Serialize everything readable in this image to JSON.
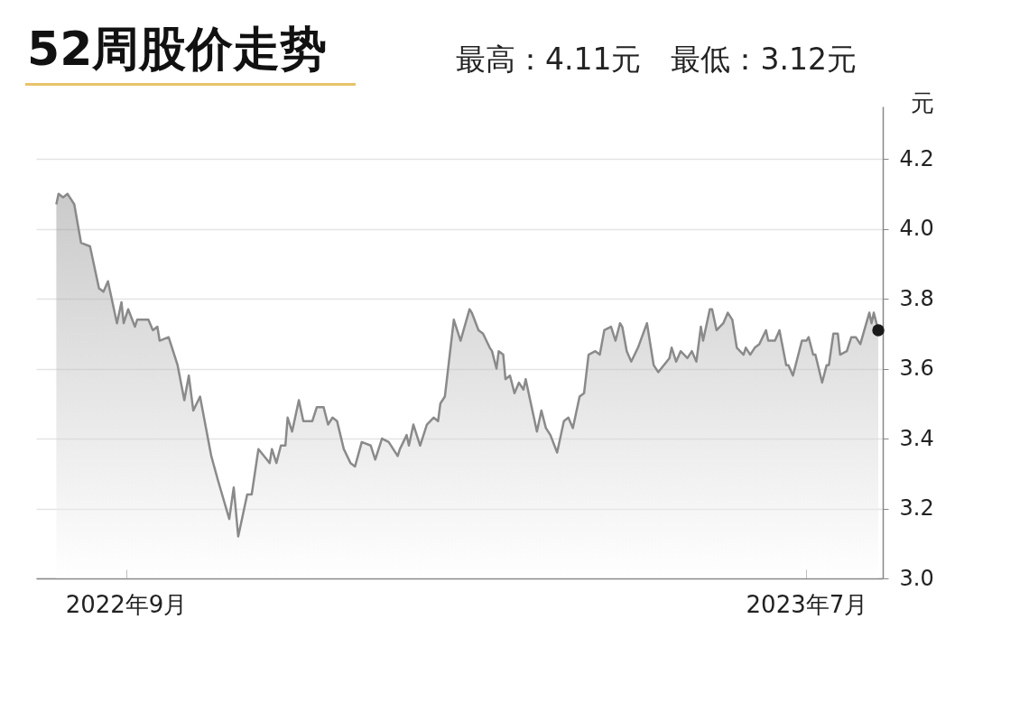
{
  "chart_data": {
    "type": "area",
    "title": "52周股价走势",
    "subtitle": "最高：4.11元　最低：3.12元",
    "ylabel": "元",
    "xlim": [
      "2022-07-23",
      "2023-08-04"
    ],
    "xticks": [
      {
        "value": "2022-09",
        "label": "2022年9月"
      },
      {
        "value": "2023-07",
        "label": "2023年7月"
      }
    ],
    "ylim": [
      3.0,
      4.35
    ],
    "yticks": [
      {
        "value": 3,
        "label": "3.0"
      },
      3.2,
      3.4,
      3.6,
      3.8,
      {
        "value": 4,
        "label": "4.0"
      },
      4.2
    ],
    "grid": "y",
    "series": [
      {
        "type": "area",
        "color": "#8a8a8a",
        "x": [
          "2022-08-01",
          "2022-08-02",
          "2022-08-04",
          "2022-08-06",
          "2022-08-09",
          "2022-08-12",
          "2022-08-16",
          "2022-08-20",
          "2022-08-22",
          "2022-08-24",
          "2022-08-28",
          "2022-08-30",
          "2022-08-31",
          "2022-09-02",
          "2022-09-05",
          "2022-09-06",
          "2022-09-11",
          "2022-09-13",
          "2022-09-15",
          "2022-09-16",
          "2022-09-20",
          "2022-09-24",
          "2022-09-27",
          "2022-09-29",
          "2022-10-01",
          "2022-10-04",
          "2022-10-09",
          "2022-10-12",
          "2022-10-17",
          "2022-10-19",
          "2022-10-21",
          "2022-10-25",
          "2022-10-27",
          "2022-10-30",
          "2022-11-04",
          "2022-11-05",
          "2022-11-07",
          "2022-11-09",
          "2022-11-11",
          "2022-11-12",
          "2022-11-14",
          "2022-11-17",
          "2022-11-19",
          "2022-11-23",
          "2022-11-25",
          "2022-11-28",
          "2022-11-30",
          "2022-12-02",
          "2022-12-04",
          "2022-12-07",
          "2022-12-10",
          "2022-12-12",
          "2022-12-15",
          "2022-12-19",
          "2022-12-21",
          "2022-12-24",
          "2022-12-27",
          "2022-12-31",
          "2023-01-01",
          "2023-01-04",
          "2023-01-05",
          "2023-01-07",
          "2023-01-10",
          "2023-01-13",
          "2023-01-16",
          "2023-01-18",
          "2023-01-19",
          "2023-01-21",
          "2023-01-25",
          "2023-01-28",
          "2023-02-01",
          "2023-02-02",
          "2023-02-05",
          "2023-02-07",
          "2023-02-10",
          "2023-02-11",
          "2023-02-13",
          "2023-02-14",
          "2023-02-16",
          "2023-02-17",
          "2023-02-19",
          "2023-02-21",
          "2023-02-23",
          "2023-02-25",
          "2023-02-26",
          "2023-02-28",
          "2023-03-03",
          "2023-03-05",
          "2023-03-07",
          "2023-03-09",
          "2023-03-12",
          "2023-03-15",
          "2023-03-17",
          "2023-03-19",
          "2023-03-22",
          "2023-03-24",
          "2023-03-26",
          "2023-03-29",
          "2023-03-31",
          "2023-04-02",
          "2023-04-05",
          "2023-04-07",
          "2023-04-09",
          "2023-04-10",
          "2023-04-12",
          "2023-04-14",
          "2023-04-17",
          "2023-04-21",
          "2023-04-24",
          "2023-04-26",
          "2023-05-01",
          "2023-05-02",
          "2023-05-04",
          "2023-05-06",
          "2023-05-09",
          "2023-05-11",
          "2023-05-13",
          "2023-05-15",
          "2023-05-16",
          "2023-05-19",
          "2023-05-20",
          "2023-05-22",
          "2023-05-25",
          "2023-05-27",
          "2023-05-29",
          "2023-05-31",
          "2023-06-03",
          "2023-06-04",
          "2023-06-06",
          "2023-06-08",
          "2023-06-10",
          "2023-06-13",
          "2023-06-14",
          "2023-06-17",
          "2023-06-19",
          "2023-06-22",
          "2023-06-23",
          "2023-06-25",
          "2023-06-29",
          "2023-07-01",
          "2023-07-02",
          "2023-07-04",
          "2023-07-05",
          "2023-07-08",
          "2023-07-10",
          "2023-07-11",
          "2023-07-13",
          "2023-07-15",
          "2023-07-16",
          "2023-07-19",
          "2023-07-21",
          "2023-07-23",
          "2023-07-25",
          "2023-07-29",
          "2023-07-30",
          "2023-07-31",
          "2023-08-02"
        ],
        "values": [
          4.07,
          4.1,
          4.09,
          4.1,
          4.07,
          3.96,
          3.95,
          3.83,
          3.82,
          3.85,
          3.73,
          3.79,
          3.73,
          3.77,
          3.72,
          3.74,
          3.74,
          3.71,
          3.72,
          3.68,
          3.69,
          3.61,
          3.51,
          3.58,
          3.48,
          3.52,
          3.35,
          3.28,
          3.17,
          3.26,
          3.12,
          3.24,
          3.24,
          3.37,
          3.33,
          3.37,
          3.33,
          3.38,
          3.38,
          3.46,
          3.42,
          3.51,
          3.45,
          3.45,
          3.49,
          3.49,
          3.44,
          3.46,
          3.45,
          3.37,
          3.33,
          3.32,
          3.39,
          3.38,
          3.34,
          3.4,
          3.39,
          3.35,
          3.37,
          3.41,
          3.38,
          3.44,
          3.38,
          3.44,
          3.46,
          3.45,
          3.5,
          3.52,
          3.74,
          3.68,
          3.77,
          3.76,
          3.71,
          3.7,
          3.66,
          3.65,
          3.6,
          3.65,
          3.64,
          3.57,
          3.58,
          3.53,
          3.56,
          3.54,
          3.57,
          3.51,
          3.42,
          3.48,
          3.43,
          3.41,
          3.36,
          3.45,
          3.46,
          3.43,
          3.52,
          3.53,
          3.64,
          3.65,
          3.64,
          3.71,
          3.72,
          3.68,
          3.73,
          3.72,
          3.65,
          3.62,
          3.66,
          3.73,
          3.61,
          3.59,
          3.63,
          3.66,
          3.62,
          3.65,
          3.63,
          3.65,
          3.62,
          3.72,
          3.68,
          3.77,
          3.77,
          3.71,
          3.73,
          3.76,
          3.74,
          3.66,
          3.64,
          3.66,
          3.64,
          3.66,
          3.67,
          3.71,
          3.68,
          3.68,
          3.71,
          3.61,
          3.61,
          3.58,
          3.68,
          3.68,
          3.69,
          3.64,
          3.64,
          3.56,
          3.61,
          3.61,
          3.7,
          3.7,
          3.64,
          3.65,
          3.69,
          3.69,
          3.67,
          3.76,
          3.73,
          3.76,
          3.71
        ]
      },
      {
        "type": "scatter",
        "color": "#1a1a1a",
        "x": [
          "2023-08-02"
        ],
        "values": [
          3.71
        ]
      }
    ]
  }
}
